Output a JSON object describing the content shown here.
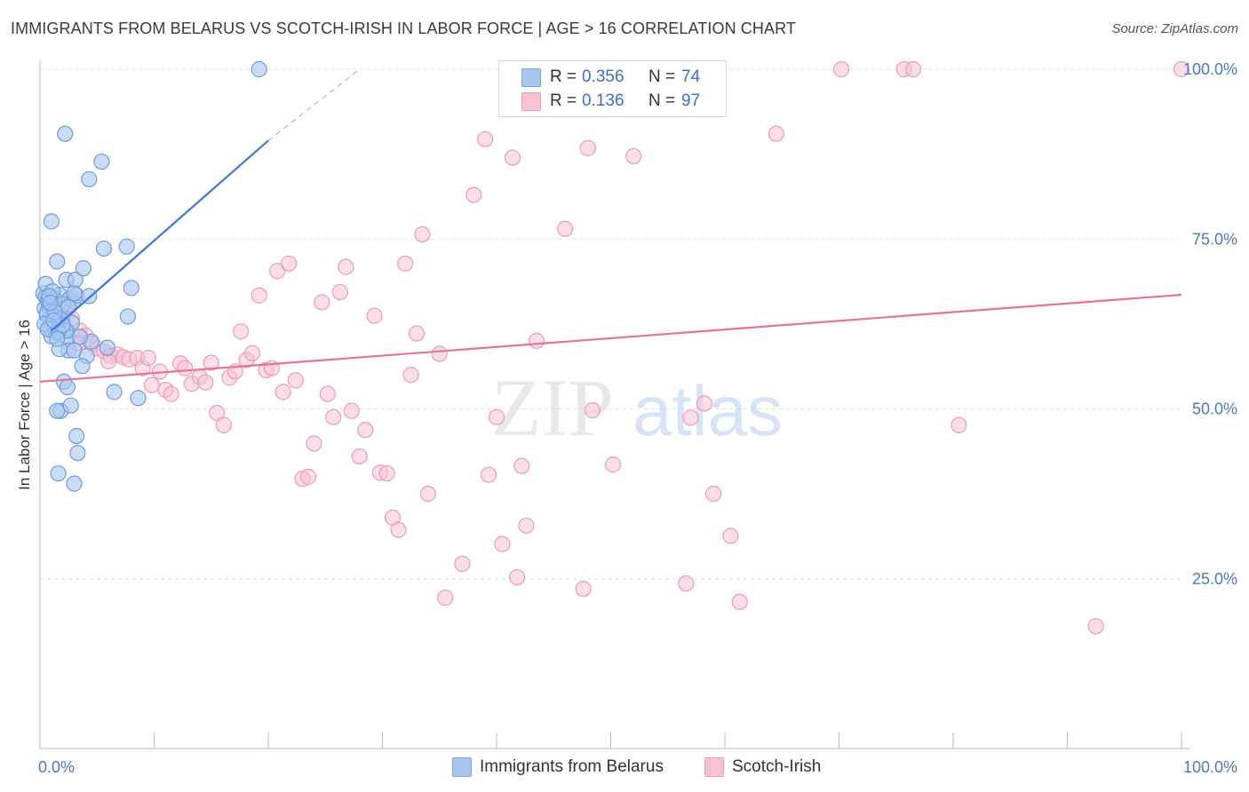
{
  "header": {
    "title": "IMMIGRANTS FROM BELARUS VS SCOTCH-IRISH IN LABOR FORCE | AGE > 16 CORRELATION CHART",
    "source": "Source: ZipAtlas.com"
  },
  "watermark": {
    "zip": "ZIP",
    "atlas": "atlas"
  },
  "legend": {
    "rows": [
      {
        "r_label": "R =",
        "r_value": "0.356",
        "n_label": "N =",
        "n_value": "74",
        "color": "#a9c6f0",
        "border": "#7aa3df"
      },
      {
        "r_label": "R =",
        "r_value": "0.136",
        "n_label": "N =",
        "n_value": "97",
        "color": "#f7c3d3",
        "border": "#ee9ab5"
      }
    ]
  },
  "bottom_legend": [
    {
      "label": "Immigrants from Belarus",
      "color": "#a9c6f0",
      "border": "#7aa3df"
    },
    {
      "label": "Scotch-Irish",
      "color": "#f7c3d3",
      "border": "#ee9ab5"
    }
  ],
  "chart_data": {
    "type": "scatter",
    "title": "IMMIGRANTS FROM BELARUS VS SCOTCH-IRISH IN LABOR FORCE | AGE > 16 CORRELATION CHART",
    "xlabel": "",
    "ylabel": "In Labor Force | Age > 16",
    "xlim": [
      0,
      100
    ],
    "ylim": [
      0,
      100
    ],
    "x_tick_labels": [
      "0.0%",
      "100.0%"
    ],
    "y_ticks": [
      25,
      50,
      75,
      100
    ],
    "y_tick_labels": [
      "25.0%",
      "50.0%",
      "75.0%",
      "100.0%"
    ],
    "grid": true,
    "colors": {
      "blue": "#3b78d8",
      "pink": "#e8729a",
      "grid": "#e0e0e0",
      "axis_text": "#4a78c2"
    },
    "series": [
      {
        "name": "Immigrants from Belarus",
        "color": "#a9c6f0",
        "stroke": "#6f9be0",
        "trend": {
          "x": [
            1,
            20
          ],
          "y": [
            61.5,
            89.5
          ],
          "dash_to": [
            28,
            100
          ],
          "color": "#3b78d8"
        },
        "points": [
          [
            0.3,
            67.0
          ],
          [
            0.5,
            66.5
          ],
          [
            0.7,
            65.9
          ],
          [
            0.4,
            64.8
          ],
          [
            0.8,
            65.2
          ],
          [
            1.0,
            64.4
          ],
          [
            1.2,
            65.0
          ],
          [
            0.6,
            63.8
          ],
          [
            1.5,
            64.0
          ],
          [
            1.1,
            62.5
          ],
          [
            1.8,
            63.0
          ],
          [
            2.0,
            63.5
          ],
          [
            0.9,
            61.8
          ],
          [
            1.4,
            61.2
          ],
          [
            1.6,
            62.1
          ],
          [
            2.2,
            61.6
          ],
          [
            2.4,
            60.6
          ],
          [
            1.3,
            66.2
          ],
          [
            1.7,
            66.8
          ],
          [
            2.6,
            66.2
          ],
          [
            2.9,
            65.8
          ],
          [
            3.2,
            66.7
          ],
          [
            0.5,
            68.4
          ],
          [
            1.5,
            71.7
          ],
          [
            2.3,
            69.0
          ],
          [
            3.1,
            69.0
          ],
          [
            3.0,
            67.0
          ],
          [
            3.8,
            70.7
          ],
          [
            4.3,
            66.6
          ],
          [
            5.6,
            73.6
          ],
          [
            8.0,
            67.8
          ],
          [
            7.7,
            63.6
          ],
          [
            5.9,
            59.0
          ],
          [
            4.5,
            59.9
          ],
          [
            3.5,
            60.6
          ],
          [
            2.5,
            58.6
          ],
          [
            3.0,
            58.6
          ],
          [
            4.1,
            57.8
          ],
          [
            3.7,
            56.3
          ],
          [
            1.7,
            58.8
          ],
          [
            2.1,
            54.0
          ],
          [
            2.4,
            53.2
          ],
          [
            6.5,
            52.5
          ],
          [
            8.6,
            51.6
          ],
          [
            1.8,
            49.7
          ],
          [
            1.5,
            49.7
          ],
          [
            2.7,
            50.5
          ],
          [
            3.2,
            46.0
          ],
          [
            3.3,
            43.5
          ],
          [
            1.6,
            40.5
          ],
          [
            3.0,
            39.0
          ],
          [
            4.3,
            83.8
          ],
          [
            5.4,
            86.4
          ],
          [
            2.2,
            90.5
          ],
          [
            1.0,
            77.6
          ],
          [
            7.6,
            73.9
          ],
          [
            19.2,
            100.0
          ],
          [
            0.6,
            64.1
          ],
          [
            1.9,
            63.2
          ],
          [
            2.8,
            62.7
          ],
          [
            0.4,
            62.5
          ],
          [
            1.0,
            60.7
          ],
          [
            2.3,
            61.5
          ],
          [
            2.0,
            65.4
          ],
          [
            1.1,
            67.3
          ],
          [
            0.8,
            66.6
          ],
          [
            1.3,
            64.3
          ],
          [
            2.5,
            65.0
          ],
          [
            0.7,
            61.7
          ],
          [
            1.6,
            61.4
          ],
          [
            2.0,
            62.3
          ],
          [
            1.2,
            63.0
          ],
          [
            0.9,
            65.6
          ],
          [
            1.5,
            60.3
          ]
        ]
      },
      {
        "name": "Scotch-Irish",
        "color": "#f7c3d3",
        "stroke": "#ee9ab5",
        "trend": {
          "x": [
            0,
            100
          ],
          "y": [
            54.0,
            66.8
          ],
          "color": "#e8729a"
        },
        "points": [
          [
            1.5,
            65.1
          ],
          [
            2.0,
            63.8
          ],
          [
            2.8,
            63.3
          ],
          [
            3.5,
            61.5
          ],
          [
            4.0,
            60.8
          ],
          [
            4.5,
            59.6
          ],
          [
            5.0,
            58.9
          ],
          [
            5.6,
            58.5
          ],
          [
            6.2,
            57.8
          ],
          [
            6.8,
            58.0
          ],
          [
            7.3,
            57.6
          ],
          [
            7.8,
            57.3
          ],
          [
            8.5,
            57.5
          ],
          [
            9.0,
            56.0
          ],
          [
            9.5,
            57.5
          ],
          [
            10.5,
            55.5
          ],
          [
            11.0,
            52.8
          ],
          [
            11.5,
            52.2
          ],
          [
            12.3,
            56.7
          ],
          [
            12.7,
            56.0
          ],
          [
            13.3,
            53.7
          ],
          [
            14.0,
            54.7
          ],
          [
            14.5,
            53.9
          ],
          [
            15.0,
            56.8
          ],
          [
            15.5,
            49.4
          ],
          [
            16.1,
            47.6
          ],
          [
            16.6,
            54.6
          ],
          [
            17.1,
            55.5
          ],
          [
            17.6,
            61.4
          ],
          [
            18.1,
            57.2
          ],
          [
            18.6,
            58.2
          ],
          [
            19.2,
            66.7
          ],
          [
            19.8,
            55.7
          ],
          [
            20.3,
            56.0
          ],
          [
            20.8,
            70.3
          ],
          [
            21.3,
            52.5
          ],
          [
            21.8,
            71.4
          ],
          [
            22.4,
            54.2
          ],
          [
            23.0,
            39.7
          ],
          [
            23.5,
            40.0
          ],
          [
            24.0,
            44.9
          ],
          [
            24.7,
            65.7
          ],
          [
            25.2,
            52.2
          ],
          [
            25.7,
            48.8
          ],
          [
            26.3,
            67.2
          ],
          [
            26.8,
            70.9
          ],
          [
            27.3,
            49.7
          ],
          [
            28.0,
            43.0
          ],
          [
            28.5,
            46.9
          ],
          [
            29.3,
            63.7
          ],
          [
            29.8,
            40.6
          ],
          [
            30.4,
            40.5
          ],
          [
            30.9,
            34.0
          ],
          [
            31.4,
            32.2
          ],
          [
            32.0,
            71.4
          ],
          [
            32.5,
            55.0
          ],
          [
            33.0,
            61.1
          ],
          [
            33.5,
            75.7
          ],
          [
            34.0,
            37.5
          ],
          [
            35.0,
            58.1
          ],
          [
            35.5,
            22.2
          ],
          [
            37.0,
            27.2
          ],
          [
            38.0,
            81.5
          ],
          [
            39.0,
            89.7
          ],
          [
            39.3,
            40.3
          ],
          [
            40.0,
            48.8
          ],
          [
            40.5,
            30.1
          ],
          [
            41.0,
            100.0
          ],
          [
            41.4,
            87.0
          ],
          [
            41.8,
            25.2
          ],
          [
            42.2,
            41.6
          ],
          [
            42.6,
            32.8
          ],
          [
            43.5,
            60.0
          ],
          [
            44.0,
            100.0
          ],
          [
            46.0,
            76.5
          ],
          [
            47.6,
            23.5
          ],
          [
            48.0,
            88.4
          ],
          [
            48.4,
            49.8
          ],
          [
            49.0,
            100.0
          ],
          [
            50.2,
            41.8
          ],
          [
            52.0,
            87.2
          ],
          [
            56.6,
            24.3
          ],
          [
            57.0,
            48.7
          ],
          [
            58.2,
            50.8
          ],
          [
            59.0,
            37.5
          ],
          [
            60.5,
            31.3
          ],
          [
            61.3,
            21.6
          ],
          [
            64.5,
            90.5
          ],
          [
            70.2,
            100.0
          ],
          [
            75.7,
            100.0
          ],
          [
            76.5,
            100.0
          ],
          [
            80.5,
            47.6
          ],
          [
            92.5,
            18.0
          ],
          [
            100.0,
            100.0
          ],
          [
            3.2,
            59.7
          ],
          [
            6.0,
            57.0
          ],
          [
            9.8,
            53.5
          ]
        ]
      }
    ]
  }
}
